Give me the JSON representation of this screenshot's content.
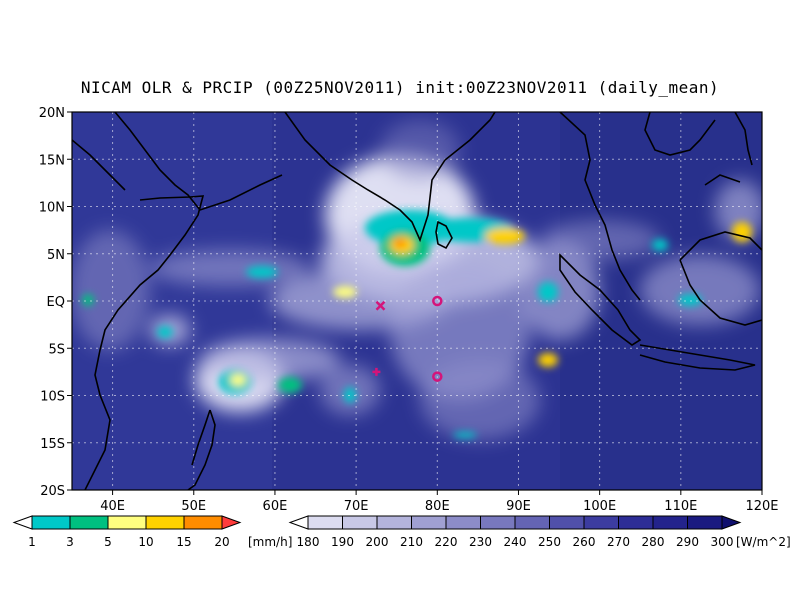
{
  "title": "NICAM OLR & PRCIP (00Z25NOV2011) init:00Z23NOV2011 (daily_mean)",
  "map": {
    "lon_range": [
      35,
      120
    ],
    "lat_range": [
      -20,
      20
    ],
    "x_ticks": [
      "40E",
      "50E",
      "60E",
      "70E",
      "80E",
      "90E",
      "100E",
      "110E",
      "120E"
    ],
    "y_ticks": [
      "20N",
      "15N",
      "10N",
      "5N",
      "EQ",
      "5S",
      "10S",
      "15S",
      "20S"
    ],
    "grid": "dotted",
    "colors": {
      "ocean_olr": "#2a3190",
      "coast": "#000000",
      "marker": "#d4147a"
    },
    "markers": [
      {
        "symbol": "x",
        "lon": 73.0,
        "lat": -0.5
      },
      {
        "symbol": "circle",
        "lon": 80.0,
        "lat": 0.0
      },
      {
        "symbol": "circle",
        "lon": 80.0,
        "lat": -8.0
      },
      {
        "symbol": "plus",
        "lon": 72.5,
        "lat": -7.5
      }
    ]
  },
  "precip_colorbar": {
    "labels": [
      "1",
      "3",
      "5",
      "10",
      "15",
      "20"
    ],
    "unit": "[mm/h]",
    "colors": [
      "#00c8c8",
      "#00c080",
      "#ffff80",
      "#ffd200",
      "#ff8c00",
      "#ff3c3c"
    ]
  },
  "olr_colorbar": {
    "labels": [
      "180",
      "190",
      "200",
      "210",
      "220",
      "230",
      "240",
      "250",
      "260",
      "270",
      "280",
      "290",
      "300"
    ],
    "unit": "[W/m^2]",
    "colors": [
      "#f0f0ff",
      "#dcdcf0",
      "#c8c8e6",
      "#b4b4dc",
      "#a0a0d2",
      "#8c8cc8",
      "#7878be",
      "#6464b4",
      "#5050aa",
      "#3c3ca0",
      "#2d2d96",
      "#23238c",
      "#1a1a80",
      "#10106e"
    ]
  }
}
